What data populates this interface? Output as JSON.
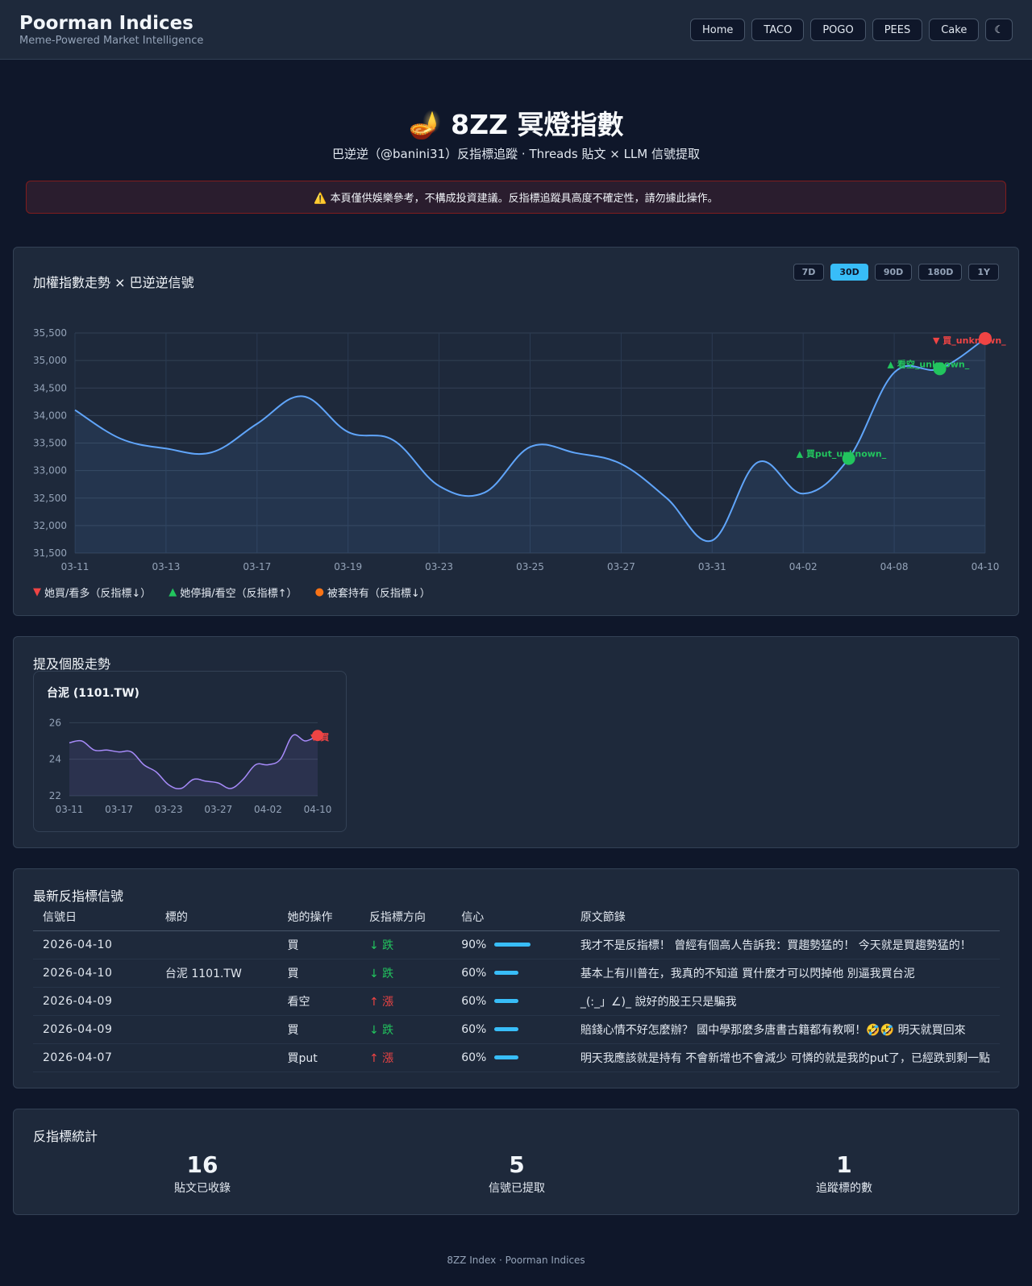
{
  "header": {
    "brand": "Poorman Indices",
    "tagline": "Meme-Powered Market Intelligence",
    "nav": [
      "Home",
      "TACO",
      "POGO",
      "PEES",
      "Cake"
    ],
    "theme_toggle": "☾"
  },
  "hero": {
    "icon": "🪔",
    "title": "8ZZ 冥燈指數",
    "subtitle": "巴逆逆（@banini31）反指標追蹤 · Threads 貼文 × LLM 信號提取"
  },
  "warning": "⚠️ 本頁僅供娛樂參考，不構成投資建議。反指標追蹤具高度不確定性，請勿據此操作。",
  "main_chart": {
    "title": "加權指數走勢 × 巴逆逆信號",
    "ranges": [
      "7D",
      "30D",
      "90D",
      "180D",
      "1Y"
    ],
    "active_range": "30D"
  },
  "legend": {
    "buy": "她買/看多（反指標↓）",
    "stop": "她停損/看空（反指標↑）",
    "hold": "被套持有（反指標↓）"
  },
  "stocks_section": {
    "title": "提及個股走勢",
    "stock_title": "台泥 (1101.TW)"
  },
  "signals": {
    "title": "最新反指標信號",
    "headers": [
      "信號日",
      "標的",
      "她的操作",
      "反指標方向",
      "信心",
      "原文節錄"
    ],
    "rows": [
      {
        "date": "2026-04-10",
        "target": "",
        "action": "買",
        "direction": "↓ 跌",
        "dir": "down",
        "confidence": "90%",
        "conf": 0.9,
        "excerpt": "我才不是反指標！ 曾經有個高人告訴我：買趨勢猛的！ 今天就是買趨勢猛的！"
      },
      {
        "date": "2026-04-10",
        "target": "台泥 1101.TW",
        "action": "買",
        "direction": "↓ 跌",
        "dir": "down",
        "confidence": "60%",
        "conf": 0.6,
        "excerpt": "基本上有川普在，我真的不知道 買什麼才可以閃掉他 別逼我買台泥"
      },
      {
        "date": "2026-04-09",
        "target": "",
        "action": "看空",
        "direction": "↑ 漲",
        "dir": "up",
        "confidence": "60%",
        "conf": 0.6,
        "excerpt": "_(:_」∠)_ 說好的股王只是騙我"
      },
      {
        "date": "2026-04-09",
        "target": "",
        "action": "買",
        "direction": "↓ 跌",
        "dir": "down",
        "confidence": "60%",
        "conf": 0.6,
        "excerpt": "賠錢心情不好怎麼辦？ 國中學那麼多唐書古籍都有教啊！🤣🤣 明天就買回來"
      },
      {
        "date": "2026-04-07",
        "target": "",
        "action": "買put",
        "direction": "↑ 漲",
        "dir": "up",
        "confidence": "60%",
        "conf": 0.6,
        "excerpt": "明天我應該就是持有 不會新增也不會減少 可憐的就是我的put了，已經跌到剩一點"
      }
    ]
  },
  "stats": {
    "title": "反指標統計",
    "items": [
      {
        "value": "16",
        "label": "貼文已收錄"
      },
      {
        "value": "5",
        "label": "信號已提取"
      },
      {
        "value": "1",
        "label": "追蹤標的數"
      }
    ]
  },
  "footer": "8ZZ Index · Poorman Indices",
  "colors": {
    "line": "#60a5fa",
    "buy": "#ef4444",
    "stop": "#22c55e",
    "hold": "#f97316",
    "stock_line": "#a78bfa",
    "accent": "#38bdf8"
  },
  "chart_data": [
    {
      "type": "line",
      "title": "加權指數走勢 × 巴逆逆信號",
      "ylim": [
        31500,
        35500
      ],
      "yticks": [
        31500,
        32000,
        32500,
        33000,
        33500,
        34000,
        34500,
        35000,
        35500
      ],
      "ytick_labels": [
        "31,500",
        "32,000",
        "32,500",
        "33,000",
        "33,500",
        "34,000",
        "34,500",
        "35,000",
        "35,500"
      ],
      "x_tick_labels": [
        "03-11",
        "03-13",
        "03-17",
        "03-19",
        "03-23",
        "03-25",
        "03-27",
        "03-31",
        "04-02",
        "04-08",
        "04-10"
      ],
      "x": [
        "03-11",
        "03-12",
        "03-13",
        "03-16",
        "03-17",
        "03-18",
        "03-19",
        "03-20",
        "03-23",
        "03-24",
        "03-25",
        "03-26",
        "03-27",
        "03-30",
        "03-31",
        "04-01",
        "04-02",
        "04-07",
        "04-08",
        "04-09",
        "04-10"
      ],
      "values": [
        34100,
        33580,
        33400,
        33330,
        33850,
        34350,
        33700,
        33550,
        32720,
        32600,
        33430,
        33320,
        33120,
        32500,
        31730,
        33150,
        32580,
        33220,
        34780,
        34850,
        35400
      ],
      "signals": [
        {
          "x": "04-07",
          "type": "stop",
          "label": "▲ 買put_unknown_"
        },
        {
          "x": "04-09",
          "type": "stop",
          "label": "▲ 看空_unknown_"
        },
        {
          "x": "04-10",
          "type": "buy",
          "label": "▼ 買_unknown_"
        }
      ]
    },
    {
      "type": "line",
      "title": "台泥 (1101.TW)",
      "ylim": [
        22,
        26.5
      ],
      "yticks": [
        22,
        24,
        26
      ],
      "ytick_labels": [
        "22",
        "24",
        "26"
      ],
      "x_tick_labels": [
        "03-11",
        "03-17",
        "03-23",
        "03-27",
        "04-02",
        "04-10"
      ],
      "x": [
        "03-11",
        "03-12",
        "03-13",
        "03-16",
        "03-17",
        "03-18",
        "03-19",
        "03-20",
        "03-23",
        "03-24",
        "03-25",
        "03-26",
        "03-27",
        "03-30",
        "03-31",
        "04-01",
        "04-02",
        "04-07",
        "04-08",
        "04-09",
        "04-10"
      ],
      "values": [
        24.9,
        25.0,
        24.5,
        24.5,
        24.4,
        24.4,
        23.7,
        23.3,
        22.6,
        22.4,
        22.9,
        22.8,
        22.7,
        22.4,
        22.9,
        23.7,
        23.7,
        24.0,
        25.3,
        25.0,
        25.3
      ],
      "signals": [
        {
          "x": "04-10",
          "type": "buy",
          "label": "▼ 買"
        }
      ]
    }
  ]
}
